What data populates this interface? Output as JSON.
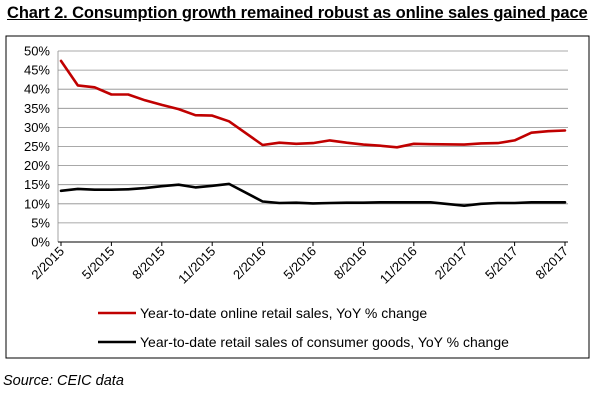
{
  "title": "Chart 2. Consumption growth remained robust as online sales gained pace",
  "source": "Source: CEIC data",
  "chart_data": {
    "type": "line",
    "title": "Chart 2. Consumption growth remained robust as online sales gained pace",
    "xlabel": "",
    "ylabel": "",
    "ylim": [
      0,
      50
    ],
    "y_tick_labels": [
      "0%",
      "5%",
      "10%",
      "15%",
      "20%",
      "25%",
      "30%",
      "35%",
      "40%",
      "45%",
      "50%"
    ],
    "x": [
      "2/2015",
      "3/2015",
      "4/2015",
      "5/2015",
      "6/2015",
      "7/2015",
      "8/2015",
      "9/2015",
      "10/2015",
      "11/2015",
      "12/2015",
      "1/2016",
      "2/2016",
      "3/2016",
      "4/2016",
      "5/2016",
      "6/2016",
      "7/2016",
      "8/2016",
      "9/2016",
      "10/2016",
      "11/2016",
      "12/2016",
      "1/2017",
      "2/2017",
      "3/2017",
      "4/2017",
      "5/2017",
      "6/2017",
      "7/2017",
      "8/2017"
    ],
    "x_tick_labels": [
      "2/2015",
      "5/2015",
      "8/2015",
      "11/2015",
      "2/2016",
      "5/2016",
      "8/2016",
      "11/2016",
      "2/2017",
      "5/2017",
      "8/2017"
    ],
    "x_tick_index": [
      0,
      3,
      6,
      9,
      12,
      15,
      18,
      21,
      24,
      27,
      30
    ],
    "grid": true,
    "legend_position": "bottom",
    "series": [
      {
        "name": "Year-to-date online retail sales, YoY % change",
        "color": "#c00000",
        "values": [
          47.4,
          41.0,
          40.5,
          38.6,
          38.6,
          37.1,
          35.9,
          34.8,
          33.2,
          33.1,
          31.6,
          null,
          25.4,
          26.0,
          25.7,
          25.9,
          26.6,
          26.0,
          25.5,
          25.2,
          24.8,
          25.7,
          25.6,
          null,
          25.5,
          25.8,
          25.9,
          26.6,
          28.6,
          29.0,
          29.2
        ]
      },
      {
        "name": "Year-to-date retail sales of consumer goods, YoY % change",
        "color": "#000000",
        "values": [
          13.4,
          13.9,
          13.7,
          13.7,
          13.8,
          14.1,
          14.6,
          15.0,
          14.3,
          14.7,
          15.2,
          null,
          10.6,
          10.2,
          10.3,
          10.1,
          10.2,
          10.3,
          10.3,
          10.4,
          10.4,
          10.4,
          10.4,
          null,
          9.5,
          10.0,
          10.2,
          10.2,
          10.4,
          10.4,
          10.4
        ]
      }
    ]
  }
}
